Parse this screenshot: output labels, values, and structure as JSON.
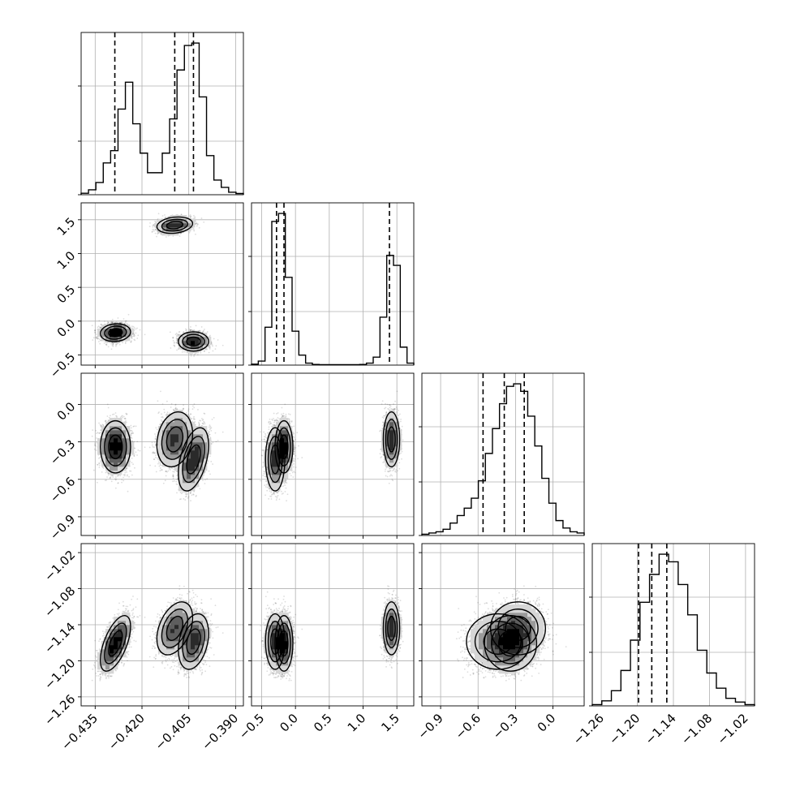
{
  "chart_data": {
    "type": "corner",
    "n_params": 4,
    "grid": true,
    "style": {
      "line_color": "#000000",
      "grid_color": "#b0b0b0",
      "sample_color": "#444444",
      "density_colors": [
        "#f4f4f4",
        "#d6d6d6",
        "#9a9a9a",
        "#5e5e5e",
        "#2a2a2a",
        "#000000"
      ]
    },
    "params": [
      {
        "range": [
          -0.4395,
          -0.3875
        ],
        "ticks": [
          -0.435,
          -0.42,
          -0.405,
          -0.39
        ],
        "tick_labels": [
          "−0.435",
          "−0.420",
          "−0.405",
          "−0.390"
        ],
        "quantiles": [
          -0.4287,
          -0.4095,
          -0.4035
        ],
        "hist": [
          0.6,
          2,
          5,
          13,
          18,
          35,
          46,
          29,
          17,
          9,
          9,
          17,
          31,
          51,
          61,
          62,
          40,
          16,
          6,
          3,
          1,
          0.5
        ]
      },
      {
        "range": [
          -0.65,
          1.75
        ],
        "ticks": [
          -0.5,
          0.0,
          0.5,
          1.0,
          1.5
        ],
        "tick_labels": [
          "−0.5",
          "0.0",
          "0.5",
          "1.0",
          "1.5"
        ],
        "quantiles": [
          -0.28,
          -0.17,
          1.39
        ],
        "hist": [
          0.5,
          2,
          19,
          72,
          76,
          44,
          17,
          5,
          1,
          0.3,
          0.2,
          0.2,
          0.2,
          0.2,
          0.2,
          0.2,
          0.3,
          1,
          4,
          24,
          55,
          50,
          9,
          1
        ]
      },
      {
        "range": [
          -1.05,
          0.25
        ],
        "ticks": [
          -0.9,
          -0.6,
          -0.3,
          0.0
        ],
        "tick_labels": [
          "−0.9",
          "−0.6",
          "−0.3",
          "0.0"
        ],
        "quantiles": [
          -0.56,
          -0.39,
          -0.23
        ],
        "hist": [
          0.5,
          1,
          1.5,
          2.5,
          5,
          8,
          11,
          15,
          22,
          33,
          43,
          53,
          60,
          61,
          58,
          48,
          36,
          23,
          13,
          6,
          3,
          1.5,
          1
        ]
      },
      {
        "range": [
          -1.275,
          -1.005
        ],
        "ticks": [
          -1.26,
          -1.2,
          -1.14,
          -1.08,
          -1.02
        ],
        "tick_labels": [
          "−1.26",
          "−1.20",
          "−1.14",
          "−1.08",
          "−1.02"
        ],
        "yticks": [
          -1.26,
          -1.2,
          -1.14,
          -1.08,
          -1.02
        ],
        "ytick_labels": [
          "−1.26",
          "−1.20",
          "−1.14",
          "−1.08",
          "−1.02"
        ],
        "quantiles": [
          -1.198,
          -1.176,
          -1.151
        ],
        "hist": [
          0.5,
          2,
          6,
          14,
          26,
          41,
          52,
          60,
          57,
          48,
          36,
          22,
          13,
          7,
          3,
          1.5,
          0.5
        ]
      }
    ],
    "modes": [
      {
        "weight": 0.39,
        "mean": [
          -0.4285,
          -0.17,
          -0.34,
          -1.171
        ],
        "sd": [
          0.0022,
          0.06,
          0.095,
          0.021
        ],
        "r01": 0.1,
        "r02": 0.0,
        "r12": 0.0,
        "r03": 0.6,
        "r13": 0.0,
        "r23": 0.0
      },
      {
        "weight": 0.29,
        "mean": [
          -0.4095,
          1.42,
          -0.28,
          -1.146
        ],
        "sd": [
          0.0026,
          0.055,
          0.1,
          0.02
        ],
        "r01": 0.2,
        "r02": 0.2,
        "r12": 0.0,
        "r03": 0.4,
        "r13": 0.0,
        "r23": 0.0
      },
      {
        "weight": 0.32,
        "mean": [
          -0.4035,
          -0.3,
          -0.44,
          -1.168
        ],
        "sd": [
          0.0022,
          0.065,
          0.115,
          0.021
        ],
        "r01": 0.0,
        "r02": 0.45,
        "r12": 0.0,
        "r03": 0.3,
        "r13": 0.0,
        "r23": 0.0
      }
    ]
  }
}
